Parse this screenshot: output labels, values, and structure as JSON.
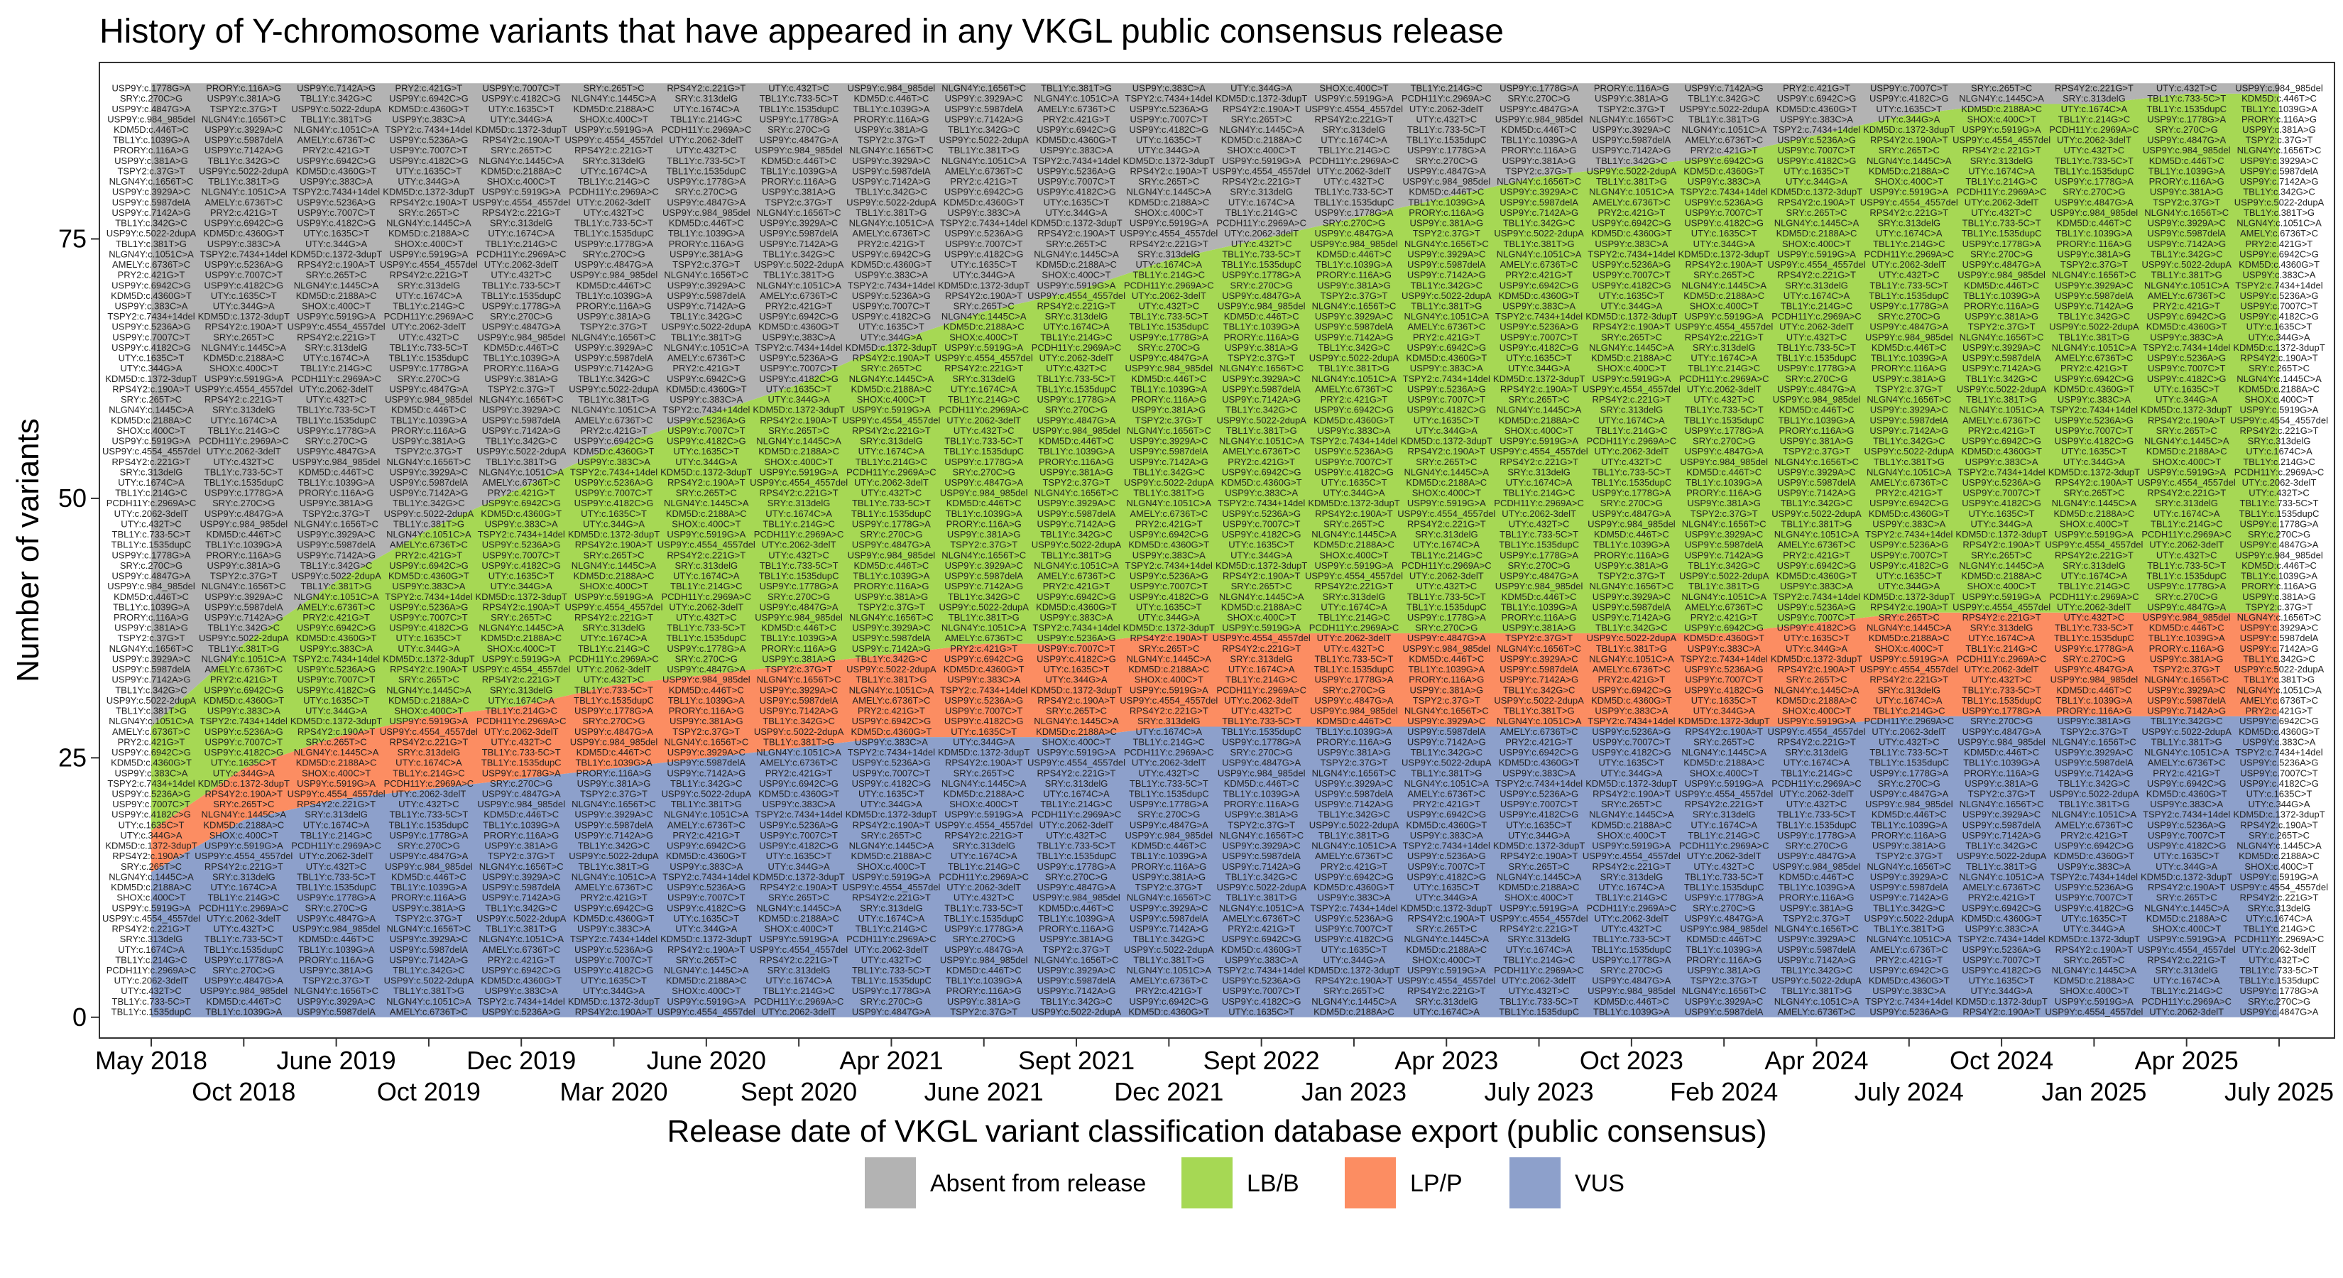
{
  "chart_data": {
    "type": "area",
    "title": "History of Y-chromosome variants that have appeared in any VKGL public consensus release",
    "xlabel": "Release date of VKGL variant classification database export (public consensus)",
    "ylabel": "Number of variants",
    "x_ticks": [
      "May 2018",
      "Oct 2018",
      "June 2019",
      "Oct 2019",
      "Dec 2019",
      "Mar 2020",
      "June 2020",
      "Sept 2020",
      "Apr 2021",
      "June 2021",
      "Sept 2021",
      "Dec 2021",
      "Sept 2022",
      "Jan 2023",
      "Apr 2023",
      "July 2023",
      "Oct 2023",
      "Feb 2024",
      "Apr 2024",
      "July 2024",
      "Oct 2024",
      "Jan 2025",
      "Apr 2025",
      "July 2025"
    ],
    "y_ticks": [
      "0",
      "25",
      "50",
      "75"
    ],
    "ylim": [
      -2,
      92
    ],
    "grid": false,
    "legend_position": "bottom",
    "legend": [
      {
        "label": "Absent from release",
        "color": "#b3b3b3"
      },
      {
        "label": "LB/B",
        "color": "#a6d854"
      },
      {
        "label": "LP/P",
        "color": "#fc8d62"
      },
      {
        "label": "VUS",
        "color": "#8da0cb"
      }
    ],
    "series": [
      {
        "name": "VUS",
        "values": [
          14,
          19,
          21,
          22,
          23,
          24,
          25,
          26,
          27,
          27,
          27,
          28,
          28,
          28,
          28,
          28,
          28,
          28,
          28,
          29,
          29,
          29,
          29,
          29
        ]
      },
      {
        "name": "LP/P",
        "values": [
          4,
          5,
          6,
          7,
          7,
          8,
          8,
          8,
          8,
          9,
          9,
          9,
          9,
          9,
          9,
          9,
          9,
          9,
          10,
          10,
          10,
          10,
          10,
          10
        ]
      },
      {
        "name": "LB/B",
        "values": [
          10,
          12,
          15,
          18,
          21,
          23,
          25,
          27,
          30,
          32,
          34,
          36,
          38,
          40,
          42,
          44,
          45,
          46,
          47,
          48,
          49,
          49,
          50,
          50
        ]
      },
      {
        "name": "Absent from release",
        "values": [
          62,
          54,
          48,
          43,
          39,
          35,
          32,
          29,
          25,
          22,
          20,
          17,
          15,
          13,
          11,
          9,
          8,
          7,
          5,
          3,
          2,
          2,
          1,
          1
        ]
      }
    ]
  },
  "variant_labels": [
    "TBL1Y:c.1535dupC",
    "NLGN4Y:c.1445C>A",
    "PRY2:c.421G>T",
    "TBL1Y:c.1039G>A",
    "SRY:c.313delG",
    "USP9Y:c.7007C>T",
    "USP9Y:c.5987delA",
    "TBL1Y:c.733-5C>T",
    "SRY:c.265T>C",
    "AMELY:c.6736T>C",
    "KDM5D:c.446T>C",
    "RPS4Y2:c.221G>T",
    "USP9Y:c.5236A>G",
    "USP9Y:c.3929A>C",
    "UTY:c.432T>C",
    "RPS4Y2:c.190A>T",
    "NLGN4Y:c.1051C>A",
    "USP9Y:c.984_985del",
    "USP9Y:c.4554_4557del",
    "TSPY2:c.7434+14del",
    "NLGN4Y:c.1656T>C",
    "UTY:c.2062-3delT",
    "KDM5D:c.1372-3dupT",
    "TBL1Y:c.381T>G",
    "USP9Y:c.4847G>A",
    "USP9Y:c.5919G>A",
    "USP9Y:c.383C>A",
    "TSPY2:c.37G>T",
    "PCDH11Y:c.2969A>C",
    "UTY:c.344G>A",
    "USP9Y:c.5022-2dupA",
    "SRY:c.270C>G",
    "SHOX:c.400C>T",
    "KDM5D:c.4360G>T",
    "USP9Y:c.381A>G",
    "TBL1Y:c.214G>C",
    "UTY:c.1635C>T",
    "TBL1Y:c.342G>C",
    "USP9Y:c.1778G>A",
    "KDM5D:c.2188A>C",
    "USP9Y:c.6942C>G",
    "PRORY:c.116A>G",
    "UTY:c.1674C>A",
    "USP9Y:c.4182C>G",
    "USP9Y:c.7142A>G"
  ]
}
